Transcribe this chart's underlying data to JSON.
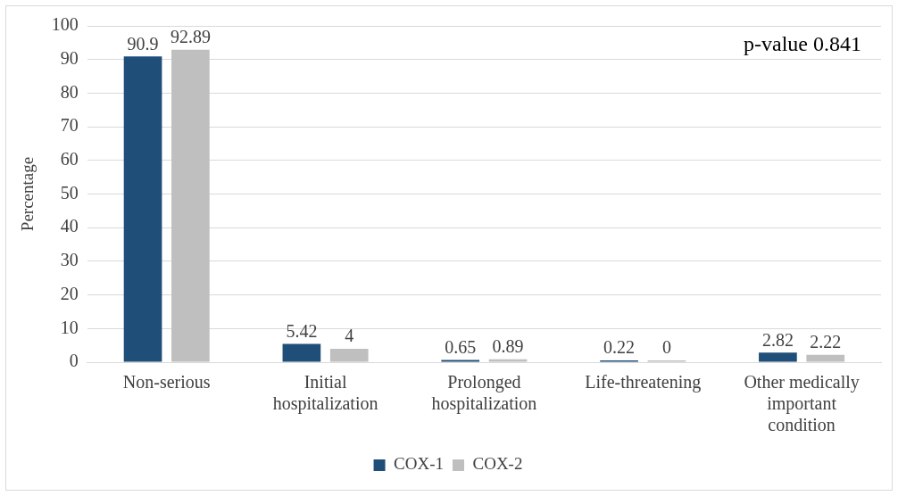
{
  "chart_data": {
    "type": "bar",
    "ylabel": "Percentage",
    "categories": [
      "Non-serious",
      "Initial hospitalization",
      "Prolonged hospitalization",
      "Life-threatening",
      "Other medically important condition"
    ],
    "series": [
      {
        "name": "COX-1",
        "color": "#1f4e79",
        "values": [
          90.9,
          5.42,
          0.65,
          0.22,
          2.82
        ]
      },
      {
        "name": "COX-2",
        "color": "#bfbfbf",
        "values": [
          92.89,
          4,
          0.89,
          0,
          2.22
        ]
      }
    ],
    "ylim": [
      0,
      100
    ],
    "yticks": [
      0,
      10,
      20,
      30,
      40,
      50,
      60,
      70,
      80,
      90,
      100
    ],
    "grid": "y",
    "legend": "bottom",
    "data_labels": true,
    "annotations": [
      "p-value 0.841"
    ]
  }
}
